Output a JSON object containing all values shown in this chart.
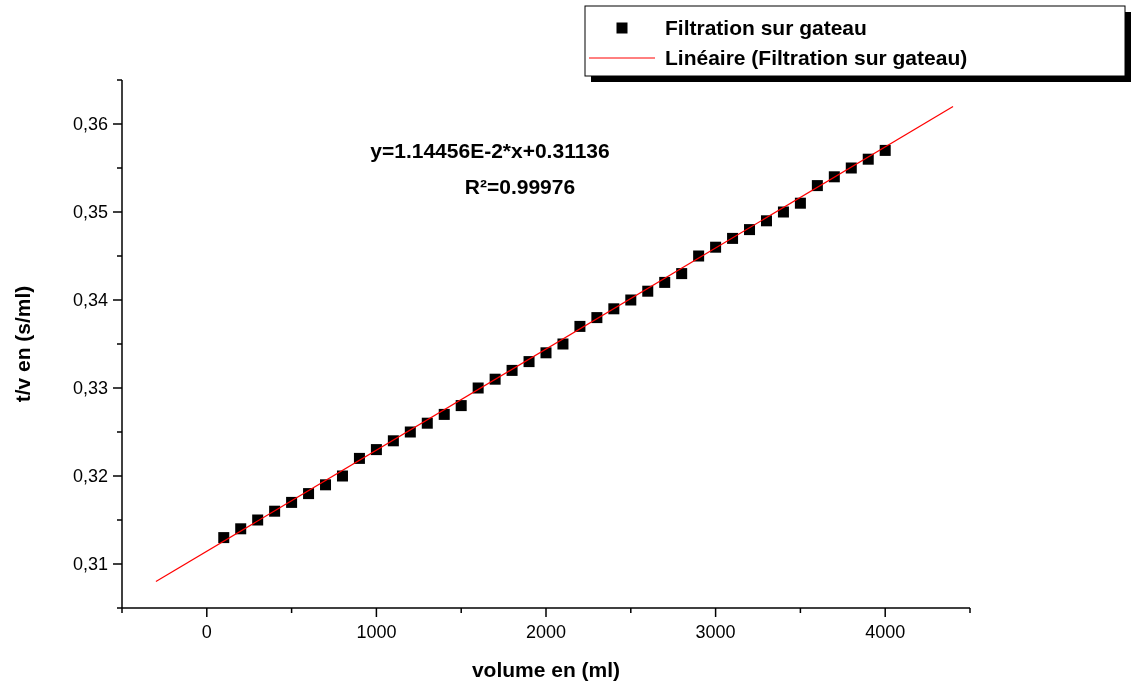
{
  "chart_data": {
    "type": "scatter",
    "xlabel": "volume en (ml)",
    "ylabel": "t/v en (s/ml)",
    "xlim": [
      -500,
      4500
    ],
    "ylim": [
      0.305,
      0.365
    ],
    "xticks": [
      {
        "value": -500,
        "label": null
      },
      0,
      {
        "value": 500,
        "label": null
      },
      1000,
      {
        "value": 1500,
        "label": null
      },
      2000,
      {
        "value": 2500,
        "label": null
      },
      3000,
      {
        "value": 3500,
        "label": null
      },
      4000,
      {
        "value": 4500,
        "label": null
      }
    ],
    "yticks": [
      {
        "value": 0.305,
        "label": null
      },
      {
        "value": 0.31,
        "label": "0,31"
      },
      {
        "value": 0.315,
        "label": null
      },
      {
        "value": 0.32,
        "label": "0,32"
      },
      {
        "value": 0.325,
        "label": null
      },
      {
        "value": 0.33,
        "label": "0,33"
      },
      {
        "value": 0.335,
        "label": null
      },
      {
        "value": 0.34,
        "label": "0,34"
      },
      {
        "value": 0.345,
        "label": null
      },
      {
        "value": 0.35,
        "label": "0,35"
      },
      {
        "value": 0.355,
        "label": null
      },
      {
        "value": 0.36,
        "label": "0,36"
      },
      {
        "value": 0.365,
        "label": null
      }
    ],
    "legend": "top right",
    "grid": false,
    "annotations": [
      "y=1.14456E-2*x+0.31136",
      "R²=0.99976"
    ],
    "series": [
      {
        "name": "Filtration sur gateau",
        "marker": "square",
        "color": "#000000",
        "x": [
          100,
          200,
          300,
          400,
          500,
          600,
          700,
          800,
          900,
          1000,
          1100,
          1200,
          1300,
          1400,
          1500,
          1600,
          1700,
          1800,
          1900,
          2000,
          2100,
          2200,
          2300,
          2400,
          2500,
          2600,
          2700,
          2800,
          2900,
          3000,
          3100,
          3200,
          3300,
          3400,
          3500,
          3600,
          3700,
          3800,
          3900,
          4000
        ],
        "values": [
          0.313,
          0.314,
          0.315,
          0.316,
          0.317,
          0.318,
          0.319,
          0.32,
          0.322,
          0.323,
          0.324,
          0.325,
          0.326,
          0.327,
          0.328,
          0.33,
          0.331,
          0.332,
          0.333,
          0.334,
          0.335,
          0.337,
          0.338,
          0.339,
          0.34,
          0.341,
          0.342,
          0.343,
          0.345,
          0.346,
          0.347,
          0.348,
          0.349,
          0.35,
          0.351,
          0.353,
          0.354,
          0.355,
          0.356,
          0.357
        ]
      },
      {
        "name": "Linéaire (Filtration sur gateau)",
        "type": "line",
        "color": "#ff0000",
        "line_style": "solid",
        "x": [
          -300,
          4400
        ],
        "values": [
          0.308,
          0.362
        ]
      }
    ]
  }
}
